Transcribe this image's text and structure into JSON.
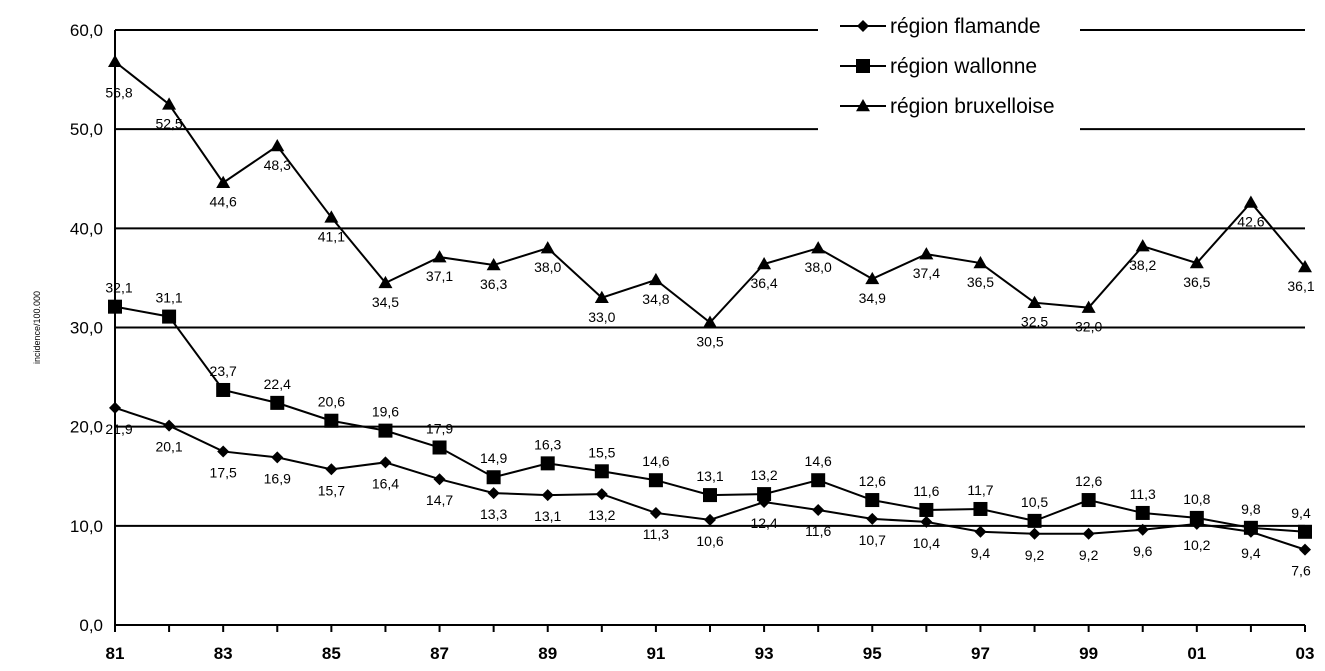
{
  "chart_data": {
    "type": "line",
    "title": "",
    "xlabel": "",
    "ylabel": "incidence/100.000",
    "ylim": [
      0,
      60
    ],
    "yticks": [
      "0,0",
      "10,0",
      "20,0",
      "30,0",
      "40,0",
      "50,0",
      "60,0"
    ],
    "x": [
      1981,
      1982,
      1983,
      1984,
      1985,
      1986,
      1987,
      1988,
      1989,
      1990,
      1991,
      1992,
      1993,
      1994,
      1995,
      1996,
      1997,
      1998,
      1999,
      2000,
      2001,
      2002,
      2003
    ],
    "xtick_labels": [
      "81",
      "83",
      "85",
      "87",
      "89",
      "91",
      "93",
      "95",
      "97",
      "99",
      "01",
      "03"
    ],
    "grid": true,
    "legend_position": "top-right",
    "series": [
      {
        "name": "région flamande",
        "marker": "diamond",
        "values": [
          21.9,
          20.1,
          17.5,
          16.9,
          15.7,
          16.4,
          14.7,
          13.3,
          13.1,
          13.2,
          11.3,
          10.6,
          12.4,
          11.6,
          10.7,
          10.4,
          9.4,
          9.2,
          9.2,
          9.6,
          10.2,
          9.4,
          7.6
        ],
        "labels": [
          "21,9",
          "20,1",
          "17,5",
          "16,9",
          "15,7",
          "16,4",
          "14,7",
          "13,3",
          "13,1",
          "13,2",
          "11,3",
          "10,6",
          "12,4",
          "11,6",
          "10,7",
          "10,4",
          "9,4",
          "9,2",
          "9,2",
          "9,6",
          "10,2",
          "9,4",
          "7,6"
        ]
      },
      {
        "name": "région wallonne",
        "marker": "square",
        "values": [
          32.1,
          31.1,
          23.7,
          22.4,
          20.6,
          19.6,
          17.9,
          14.9,
          16.3,
          15.5,
          14.6,
          13.1,
          13.2,
          14.6,
          12.6,
          11.6,
          11.7,
          10.5,
          12.6,
          11.3,
          10.8,
          9.8,
          9.4
        ],
        "labels": [
          "32,1",
          "31,1",
          "23,7",
          "22,4",
          "20,6",
          "19,6",
          "17,9",
          "14,9",
          "16,3",
          "15,5",
          "14,6",
          "13,1",
          "13,2",
          "14,6",
          "12,6",
          "11,6",
          "11,7",
          "10,5",
          "12,6",
          "11,3",
          "10,8",
          "9,8",
          "9,4"
        ]
      },
      {
        "name": "région bruxelloise",
        "marker": "triangle",
        "values": [
          56.8,
          52.5,
          44.6,
          48.3,
          41.1,
          34.5,
          37.1,
          36.3,
          38.0,
          33.0,
          34.8,
          30.5,
          36.4,
          38.0,
          34.9,
          37.4,
          36.5,
          32.5,
          32.0,
          38.2,
          36.5,
          42.6,
          36.1
        ],
        "labels": [
          "56,8",
          "52,5",
          "44,6",
          "48,3",
          "41,1",
          "34,5",
          "37,1",
          "36,3",
          "38,0",
          "33,0",
          "34,8",
          "30,5",
          "36,4",
          "38,0",
          "34,9",
          "37,4",
          "36,5",
          "32,5",
          "32,0",
          "38,2",
          "36,5",
          "42,6",
          "36,1"
        ]
      }
    ]
  }
}
